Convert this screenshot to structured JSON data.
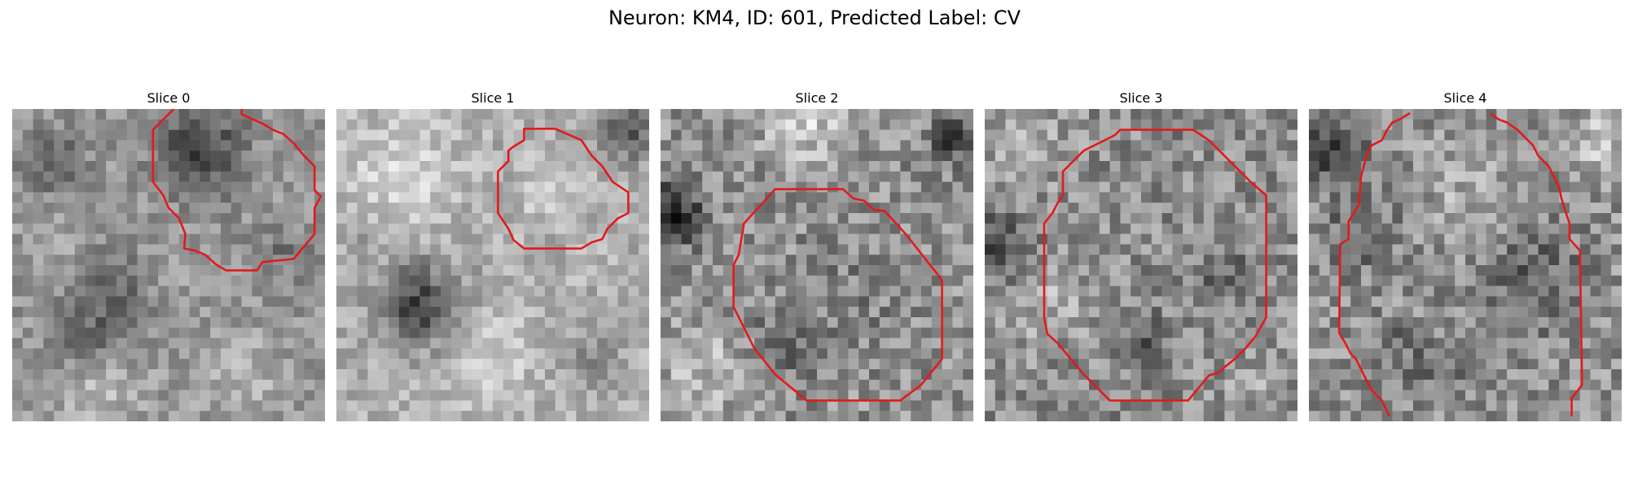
{
  "figure": {
    "title": "Neuron: KM4, ID: 601, Predicted Label: CV"
  },
  "panels": [
    {
      "title": "Slice 0"
    },
    {
      "title": "Slice 1"
    },
    {
      "title": "Slice 2"
    },
    {
      "title": "Slice 3"
    },
    {
      "title": "Slice 4"
    }
  ],
  "colors": {
    "contour": "#e31a1c",
    "background": "#ffffff",
    "colormap": "grayscale"
  }
}
